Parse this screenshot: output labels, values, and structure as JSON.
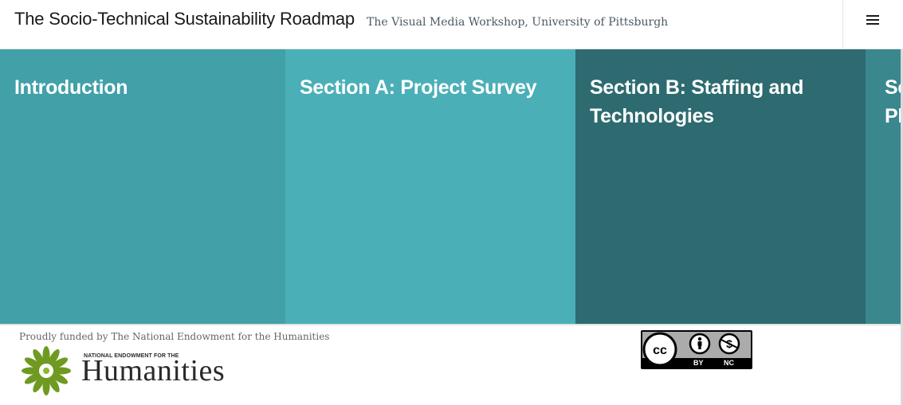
{
  "header": {
    "title": "The Socio-Technical Sustainability Roadmap",
    "subtitle": "The Visual Media Workshop, University of Pittsburgh",
    "menu_icon": "hamburger-menu-icon"
  },
  "sections": [
    {
      "label": "Introduction",
      "color": "#41a0a8"
    },
    {
      "label": "Section A: Project Survey",
      "color": "#4bafb8"
    },
    {
      "label": "Section B: Staffing and Technologies",
      "color": "#2d6b70"
    },
    {
      "label": "Section C: Sustainability Plan",
      "color": "#3a878e"
    }
  ],
  "footer": {
    "funded_text": "Proudly funded by The National Endowment for the Humanities",
    "neh_logo": {
      "small_text": "NATIONAL ENDOWMENT FOR THE",
      "big_text": "Humanities",
      "color": "#6f9a22"
    },
    "license": {
      "icons": [
        "cc-icon",
        "by-icon",
        "nc-icon"
      ],
      "by_label": "BY",
      "nc_label": "NC"
    }
  }
}
